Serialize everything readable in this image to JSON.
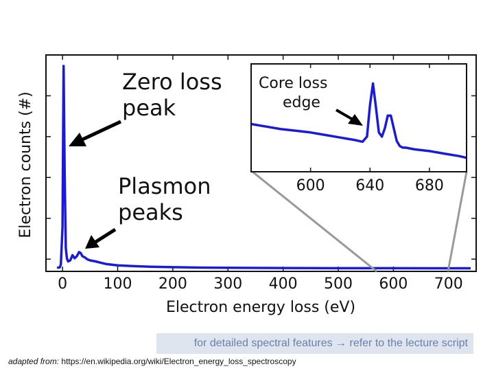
{
  "chart_data": {
    "type": "line",
    "xlabel": "Electron energy loss (eV)",
    "ylabel": "Electron counts (#)",
    "xlim": [
      -30,
      750
    ],
    "x_ticks": [
      0,
      100,
      200,
      300,
      400,
      500,
      600,
      700
    ],
    "grid": false,
    "line_color": "#1a1adc",
    "main_series": {
      "x": [
        -10,
        -5,
        -3,
        0,
        2,
        4,
        6,
        8,
        10,
        14,
        18,
        22,
        26,
        30,
        33,
        36,
        40,
        45,
        50,
        60,
        70,
        80,
        100,
        130,
        160,
        200,
        250,
        300,
        400,
        500,
        600,
        700,
        740
      ],
      "y": [
        0.004,
        0.006,
        0.02,
        0.2,
        0.98,
        0.45,
        0.1,
        0.05,
        0.035,
        0.04,
        0.065,
        0.05,
        0.06,
        0.08,
        0.075,
        0.06,
        0.055,
        0.045,
        0.04,
        0.035,
        0.028,
        0.022,
        0.016,
        0.012,
        0.009,
        0.007,
        0.005,
        0.004,
        0.003,
        0.002,
        0.002,
        0.0015,
        0.0015
      ]
    },
    "inset": {
      "xlim": [
        560,
        705
      ],
      "x_ticks": [
        600,
        640,
        680
      ],
      "series": {
        "x": [
          560,
          570,
          580,
          590,
          600,
          610,
          620,
          630,
          635,
          638,
          640,
          642,
          644,
          646,
          648,
          650,
          652,
          654,
          656,
          658,
          660,
          662,
          664,
          670,
          680,
          690,
          700,
          705
        ],
        "y": [
          0.5,
          0.47,
          0.44,
          0.42,
          0.4,
          0.37,
          0.34,
          0.31,
          0.29,
          0.35,
          0.72,
          0.98,
          0.7,
          0.4,
          0.35,
          0.45,
          0.6,
          0.6,
          0.45,
          0.3,
          0.24,
          0.22,
          0.22,
          0.2,
          0.18,
          0.15,
          0.12,
          0.1
        ]
      },
      "annotation": "Core loss\n     edge"
    },
    "annotations": [
      {
        "text": "Zero loss\npeak"
      },
      {
        "text": "Plasmon\npeaks"
      }
    ]
  },
  "note": "for detailed spectral features → refer to the lecture script",
  "source": {
    "prefix": "adapted from:",
    "url": "https://en.wikipedia.org/wiki/Electron_energy_loss_spectroscopy"
  }
}
